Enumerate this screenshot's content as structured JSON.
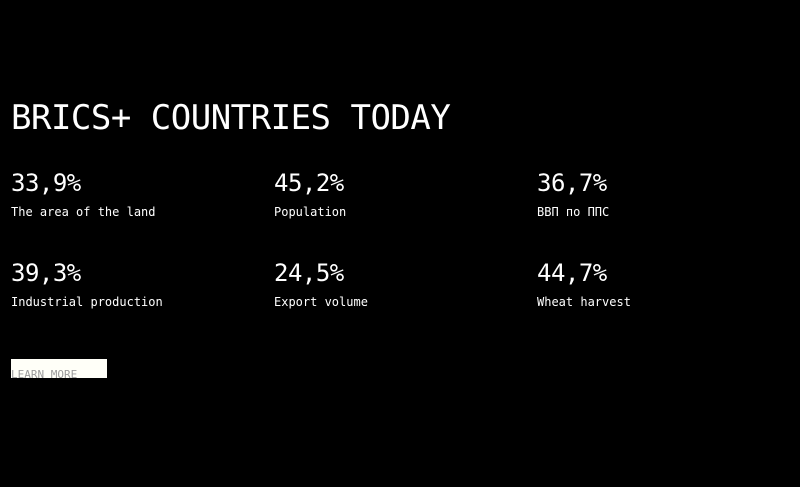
{
  "page": {
    "background": "#000000",
    "text_color": "#ffffff"
  },
  "header": {
    "title": "BRICS+ COUNTRIES TODAY"
  },
  "stats": [
    {
      "value": "33,9%",
      "label": "The area of the land"
    },
    {
      "value": "45,2%",
      "label": "Population"
    },
    {
      "value": "36,7%",
      "label": "ВВП по ППС"
    },
    {
      "value": "39,3%",
      "label": "Industrial production"
    },
    {
      "value": "24,5%",
      "label": "Export volume"
    },
    {
      "value": "44,7%",
      "label": "Wheat harvest"
    }
  ],
  "cta": {
    "label": "LEARN MORE",
    "background": "#fffff8"
  }
}
